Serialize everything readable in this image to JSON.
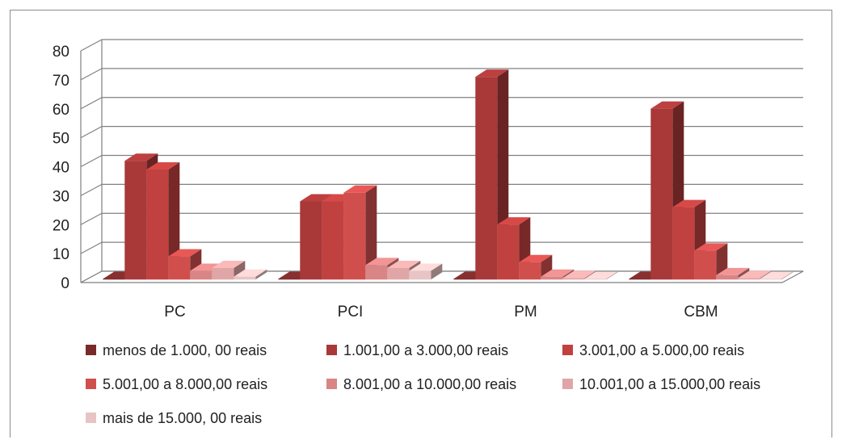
{
  "chart_data": {
    "type": "bar",
    "style": "3d-clustered-column",
    "categories": [
      "PC",
      "PCI",
      "PM",
      "CBM"
    ],
    "ylim": [
      0,
      80
    ],
    "yticks": [
      0,
      10,
      20,
      30,
      40,
      50,
      60,
      70,
      80
    ],
    "grid": true,
    "legend_position": "bottom",
    "series": [
      {
        "name": "menos de 1.000, 00 reais",
        "color": "#7a2a2a",
        "values": [
          0,
          0,
          0,
          0
        ]
      },
      {
        "name": "1.001,00 a 3.000,00 reais",
        "color": "#a93838",
        "values": [
          41,
          27,
          70,
          59
        ]
      },
      {
        "name": "3.001,00 a 5.000,00 reais",
        "color": "#c0413f",
        "values": [
          38,
          27,
          19,
          25
        ]
      },
      {
        "name": "5.001,00 a 8.000,00 reais",
        "color": "#d04f4d",
        "values": [
          8,
          30,
          6,
          10
        ]
      },
      {
        "name": "8.001,00 a 10.000,00 reais",
        "color": "#d98585",
        "values": [
          3,
          5,
          1,
          1.5
        ]
      },
      {
        "name": "10.001,00 a 15.000,00 reais",
        "color": "#e0a6a6",
        "values": [
          4,
          4,
          0.5,
          0.5
        ]
      },
      {
        "name": "mais de 15.000, 00 reais",
        "color": "#e8c4c4",
        "values": [
          1,
          3,
          0,
          0
        ]
      }
    ]
  }
}
